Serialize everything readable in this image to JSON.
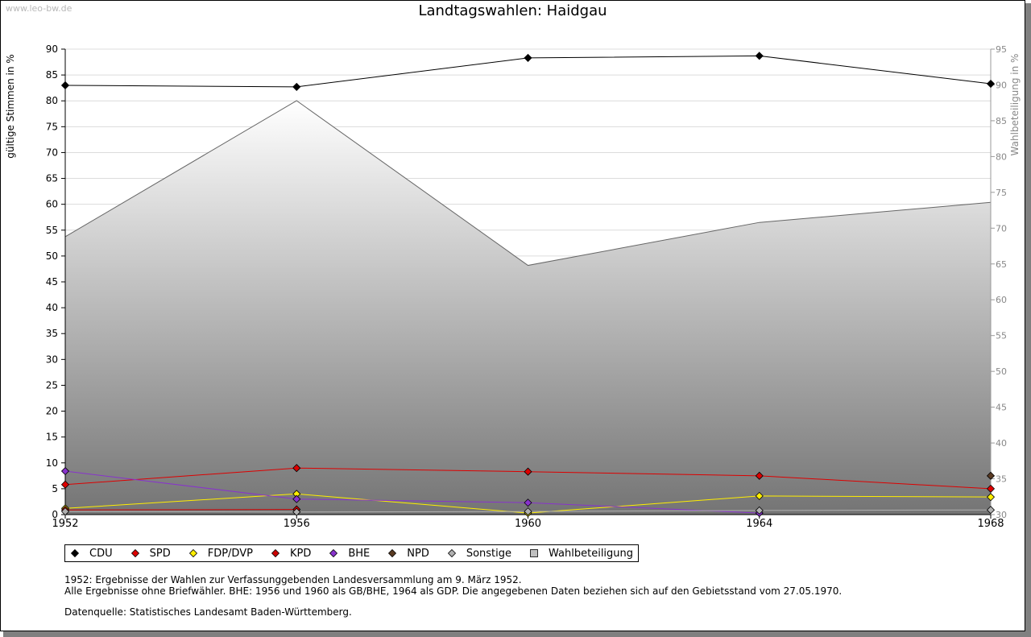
{
  "watermark": "www.leo-bw.de",
  "chart_data": {
    "type": "line",
    "title": "Landtagswahlen: Haidgau",
    "ylabel": "gültige Stimmen in %",
    "y2label": "Wahlbeteiligung in %",
    "xlabel": "",
    "categories": [
      "1952",
      "1956",
      "1960",
      "1964",
      "1968"
    ],
    "ylim": [
      0,
      90
    ],
    "yticks": [
      "0",
      "5",
      "10",
      "15",
      "20",
      "25",
      "30",
      "35",
      "40",
      "45",
      "50",
      "55",
      "60",
      "65",
      "70",
      "75",
      "80",
      "85",
      "90"
    ],
    "y2lim": [
      30,
      95
    ],
    "y2ticks": [
      "30",
      "35",
      "40",
      "45",
      "50",
      "55",
      "60",
      "65",
      "70",
      "75",
      "80",
      "85",
      "90",
      "95"
    ],
    "series": [
      {
        "name": "CDU",
        "color": "#000000",
        "values": [
          83.0,
          82.7,
          88.3,
          88.7,
          83.3
        ]
      },
      {
        "name": "SPD",
        "color": "#dd0000",
        "values": [
          5.8,
          9.0,
          8.3,
          7.5,
          5.0
        ]
      },
      {
        "name": "FDP/DVP",
        "color": "#ffee00",
        "values": [
          1.2,
          4.0,
          0.3,
          3.6,
          3.4
        ]
      },
      {
        "name": "KPD",
        "color": "#cc0000",
        "values": [
          0.9,
          1.0,
          null,
          null,
          null
        ]
      },
      {
        "name": "BHE",
        "color": "#8833cc",
        "values": [
          8.4,
          3.0,
          2.3,
          0.3,
          null
        ]
      },
      {
        "name": "NPD",
        "color": "#5a3a22",
        "values": [
          null,
          null,
          null,
          null,
          7.5
        ]
      },
      {
        "name": "Sonstige",
        "color": "#b0b0b0",
        "values": [
          0.6,
          0.5,
          0.6,
          0.8,
          0.9
        ]
      }
    ],
    "turnout": {
      "name": "Wahlbeteiligung",
      "color": "#c0c0c0",
      "values": [
        68.8,
        87.8,
        64.8,
        70.8,
        73.6
      ]
    },
    "legend_position": "bottom-left"
  },
  "footnotes": {
    "line1": "1952: Ergebnisse der Wahlen zur Verfassunggebenden Landesversammlung am 9. März 1952.",
    "line2": "Alle Ergebnisse ohne Briefwähler. BHE: 1956 und 1960 als GB/BHE, 1964 als GDP. Die angegebenen Daten beziehen sich auf den Gebietsstand vom 27.05.1970.",
    "source": "Datenquelle: Statistisches Landesamt Baden-Württemberg."
  }
}
